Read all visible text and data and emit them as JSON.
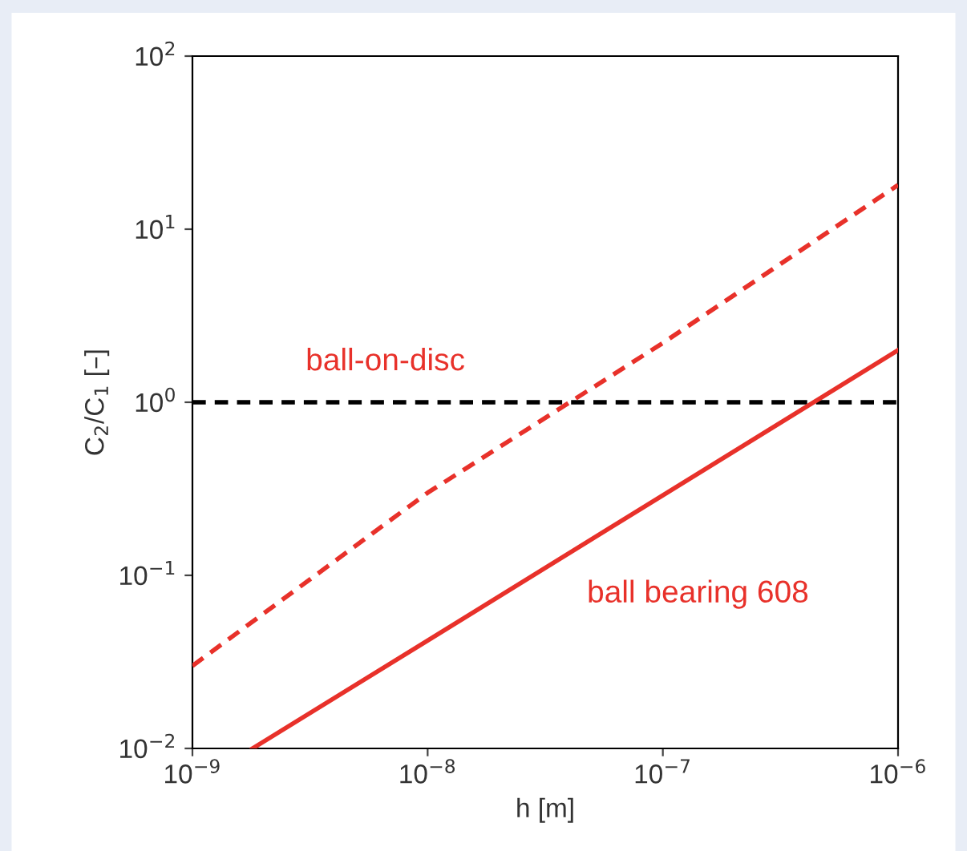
{
  "chart_data": {
    "type": "line",
    "xlabel": "h [m]",
    "ylabel": "C$_{2}$/C$_{1}$ [–]",
    "log": "xy",
    "xlim": [
      1e-09,
      1e-06
    ],
    "ylim": [
      0.01,
      100
    ],
    "xticks": [
      {
        "value": 1e-09,
        "label": "10$^{−9}$"
      },
      {
        "value": 1e-08,
        "label": "10$^{−8}$"
      },
      {
        "value": 1e-07,
        "label": "10$^{−7}$"
      },
      {
        "value": 1e-06,
        "label": "10$^{−6}$"
      }
    ],
    "yticks": [
      {
        "value": 0.01,
        "label": "10$^{−2}$"
      },
      {
        "value": 0.1,
        "label": "10$^{−1}$"
      },
      {
        "value": 1,
        "label": "10$^{0}$"
      },
      {
        "value": 10,
        "label": "10$^{1}$"
      },
      {
        "value": 100,
        "label": "10$^{2}$"
      }
    ],
    "grid": false,
    "legend": false,
    "ref_lines": [
      {
        "axis": "y",
        "value": 1,
        "color": "#000000",
        "line_style": "dashed"
      }
    ],
    "series": [
      {
        "name": "ball-on-disc",
        "color": "#e8312a",
        "line_style": "dashed",
        "x": [
          1e-09,
          1e-08,
          1e-07,
          1e-06
        ],
        "values": [
          0.03,
          0.3,
          2.2,
          18
        ]
      },
      {
        "name": "ball bearing 608",
        "color": "#e8312a",
        "line_style": "solid",
        "x": [
          1.8e-09,
          1e-08,
          1e-07,
          1e-06
        ],
        "values": [
          0.01,
          0.042,
          0.29,
          2.0
        ]
      }
    ]
  }
}
